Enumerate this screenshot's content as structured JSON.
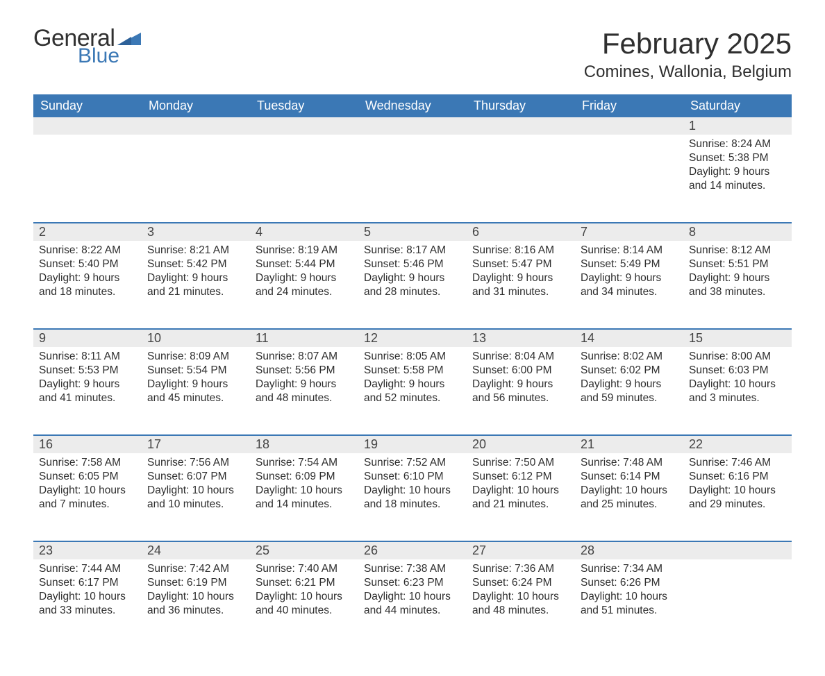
{
  "logo": {
    "general": "General",
    "blue": "Blue"
  },
  "title": {
    "month": "February 2025",
    "location": "Comines, Wallonia, Belgium"
  },
  "colors": {
    "blue": "#3b78b5",
    "grey_bg": "#ececec",
    "text": "#2b2b2b",
    "white": "#ffffff"
  },
  "daysOfWeek": [
    "Sunday",
    "Monday",
    "Tuesday",
    "Wednesday",
    "Thursday",
    "Friday",
    "Saturday"
  ],
  "firstDayIndex": 6,
  "daysInMonth": 28,
  "days": {
    "1": {
      "sunrise": "8:24 AM",
      "sunset": "5:38 PM",
      "daylight": "9 hours and 14 minutes."
    },
    "2": {
      "sunrise": "8:22 AM",
      "sunset": "5:40 PM",
      "daylight": "9 hours and 18 minutes."
    },
    "3": {
      "sunrise": "8:21 AM",
      "sunset": "5:42 PM",
      "daylight": "9 hours and 21 minutes."
    },
    "4": {
      "sunrise": "8:19 AM",
      "sunset": "5:44 PM",
      "daylight": "9 hours and 24 minutes."
    },
    "5": {
      "sunrise": "8:17 AM",
      "sunset": "5:46 PM",
      "daylight": "9 hours and 28 minutes."
    },
    "6": {
      "sunrise": "8:16 AM",
      "sunset": "5:47 PM",
      "daylight": "9 hours and 31 minutes."
    },
    "7": {
      "sunrise": "8:14 AM",
      "sunset": "5:49 PM",
      "daylight": "9 hours and 34 minutes."
    },
    "8": {
      "sunrise": "8:12 AM",
      "sunset": "5:51 PM",
      "daylight": "9 hours and 38 minutes."
    },
    "9": {
      "sunrise": "8:11 AM",
      "sunset": "5:53 PM",
      "daylight": "9 hours and 41 minutes."
    },
    "10": {
      "sunrise": "8:09 AM",
      "sunset": "5:54 PM",
      "daylight": "9 hours and 45 minutes."
    },
    "11": {
      "sunrise": "8:07 AM",
      "sunset": "5:56 PM",
      "daylight": "9 hours and 48 minutes."
    },
    "12": {
      "sunrise": "8:05 AM",
      "sunset": "5:58 PM",
      "daylight": "9 hours and 52 minutes."
    },
    "13": {
      "sunrise": "8:04 AM",
      "sunset": "6:00 PM",
      "daylight": "9 hours and 56 minutes."
    },
    "14": {
      "sunrise": "8:02 AM",
      "sunset": "6:02 PM",
      "daylight": "9 hours and 59 minutes."
    },
    "15": {
      "sunrise": "8:00 AM",
      "sunset": "6:03 PM",
      "daylight": "10 hours and 3 minutes."
    },
    "16": {
      "sunrise": "7:58 AM",
      "sunset": "6:05 PM",
      "daylight": "10 hours and 7 minutes."
    },
    "17": {
      "sunrise": "7:56 AM",
      "sunset": "6:07 PM",
      "daylight": "10 hours and 10 minutes."
    },
    "18": {
      "sunrise": "7:54 AM",
      "sunset": "6:09 PM",
      "daylight": "10 hours and 14 minutes."
    },
    "19": {
      "sunrise": "7:52 AM",
      "sunset": "6:10 PM",
      "daylight": "10 hours and 18 minutes."
    },
    "20": {
      "sunrise": "7:50 AM",
      "sunset": "6:12 PM",
      "daylight": "10 hours and 21 minutes."
    },
    "21": {
      "sunrise": "7:48 AM",
      "sunset": "6:14 PM",
      "daylight": "10 hours and 25 minutes."
    },
    "22": {
      "sunrise": "7:46 AM",
      "sunset": "6:16 PM",
      "daylight": "10 hours and 29 minutes."
    },
    "23": {
      "sunrise": "7:44 AM",
      "sunset": "6:17 PM",
      "daylight": "10 hours and 33 minutes."
    },
    "24": {
      "sunrise": "7:42 AM",
      "sunset": "6:19 PM",
      "daylight": "10 hours and 36 minutes."
    },
    "25": {
      "sunrise": "7:40 AM",
      "sunset": "6:21 PM",
      "daylight": "10 hours and 40 minutes."
    },
    "26": {
      "sunrise": "7:38 AM",
      "sunset": "6:23 PM",
      "daylight": "10 hours and 44 minutes."
    },
    "27": {
      "sunrise": "7:36 AM",
      "sunset": "6:24 PM",
      "daylight": "10 hours and 48 minutes."
    },
    "28": {
      "sunrise": "7:34 AM",
      "sunset": "6:26 PM",
      "daylight": "10 hours and 51 minutes."
    }
  },
  "labels": {
    "sunrise": "Sunrise:",
    "sunset": "Sunset:",
    "daylight": "Daylight:"
  }
}
